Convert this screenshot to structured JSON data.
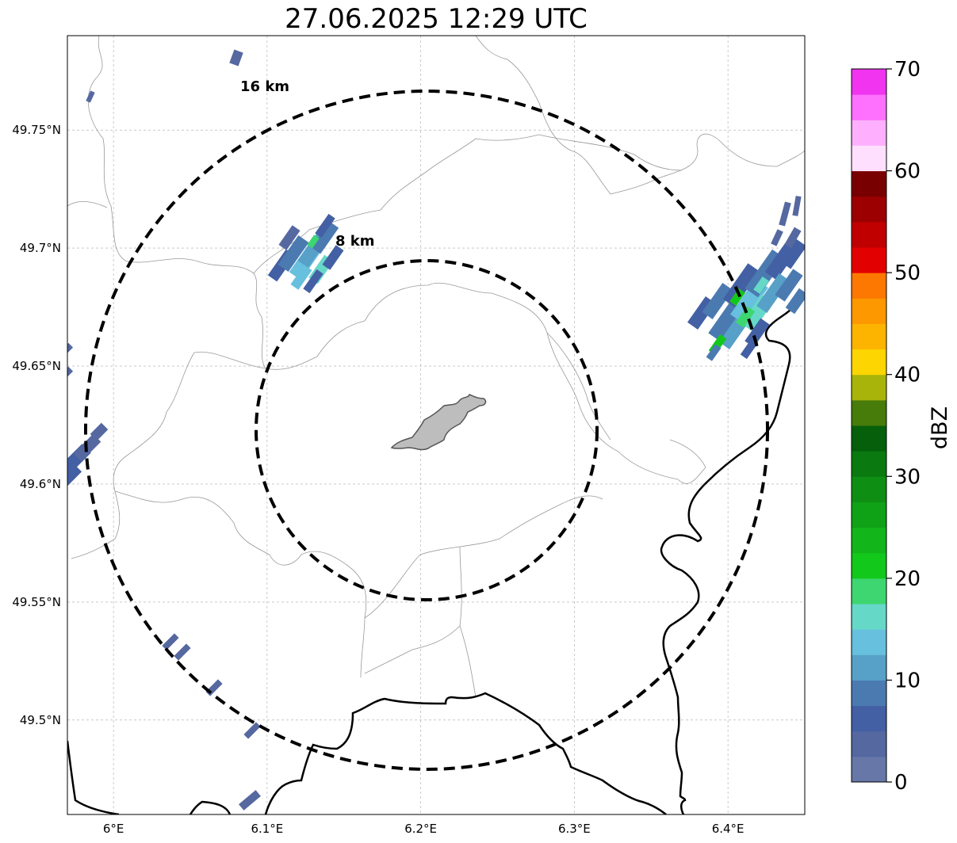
{
  "title": "27.06.2025 12:29 UTC",
  "map": {
    "lon_range": [
      5.97,
      6.45
    ],
    "lat_range": [
      49.46,
      49.79
    ],
    "grid": true,
    "lat_ticks": [
      {
        "value": 49.5,
        "label": "49.5°N"
      },
      {
        "value": 49.55,
        "label": "49.55°N"
      },
      {
        "value": 49.6,
        "label": "49.6°N"
      },
      {
        "value": 49.65,
        "label": "49.65°N"
      },
      {
        "value": 49.7,
        "label": "49.7°N"
      },
      {
        "value": 49.75,
        "label": "49.75°N"
      }
    ],
    "lon_ticks": [
      {
        "value": 6.0,
        "label": "6°E"
      },
      {
        "value": 6.1,
        "label": "6.1°E"
      },
      {
        "value": 6.2,
        "label": "6.2°E"
      },
      {
        "value": 6.3,
        "label": "6.3°E"
      },
      {
        "value": 6.4,
        "label": "6.4°E"
      }
    ],
    "range_rings": [
      {
        "label": "8 km",
        "style": "dashed"
      },
      {
        "label": "16 km",
        "style": "dashed"
      }
    ],
    "city_fill_color": "#bdbdbd"
  },
  "colorbar": {
    "label": "dBZ",
    "min": 0,
    "max": 70,
    "ticks": [
      {
        "value": 0,
        "label": "0"
      },
      {
        "value": 10,
        "label": "10"
      },
      {
        "value": 20,
        "label": "20"
      },
      {
        "value": 30,
        "label": "30"
      },
      {
        "value": 40,
        "label": "40"
      },
      {
        "value": 50,
        "label": "50"
      },
      {
        "value": 60,
        "label": "60"
      },
      {
        "value": 70,
        "label": "70"
      }
    ],
    "colors": [
      "#6677a8",
      "#5568a0",
      "#4460a4",
      "#4b7ab1",
      "#57a0c8",
      "#67c0de",
      "#66d8c8",
      "#3ed670",
      "#12c81a",
      "#12b51a",
      "#0fa116",
      "#0e8f13",
      "#0a7a10",
      "#065f0b",
      "#477b0a",
      "#a8b40a",
      "#fdd500",
      "#fdb400",
      "#fd9800",
      "#fd7800",
      "#e30000",
      "#c00000",
      "#9c0000",
      "#780000",
      "#fee0fe",
      "#feb0fe",
      "#fe70fe",
      "#f034f0"
    ]
  }
}
